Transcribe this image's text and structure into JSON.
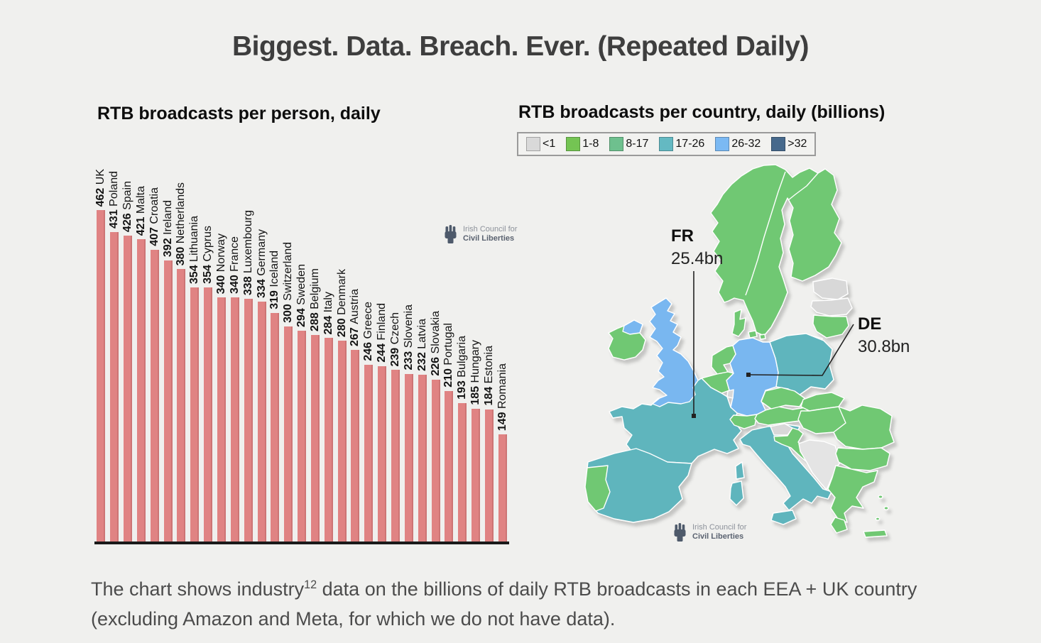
{
  "page": {
    "title": "Biggest. Data. Breach. Ever. (Repeated Daily)",
    "background_color": "#f0f0ee",
    "caption": {
      "text_before_sup": "The chart shows industry",
      "sup": "12",
      "text_after_sup": " data on the billions of daily RTB broadcasts in each EEA + UK country (excluding Amazon and Meta, for which we do not have data)."
    }
  },
  "logo": {
    "line1": "Irish Council for",
    "line2": "Civil Liberties"
  },
  "bar_chart": {
    "title": "RTB broadcasts per person, daily",
    "bar_color": "#e08383"
  },
  "map": {
    "title": "RTB broadcasts per country, daily (billions)",
    "legend": [
      {
        "label": "<1",
        "color": "#d9d9d9"
      },
      {
        "label": "1-8",
        "color": "#74c453"
      },
      {
        "label": "8-17",
        "color": "#6ec08e"
      },
      {
        "label": "17-26",
        "color": "#64b9c2"
      },
      {
        "label": "26-32",
        "color": "#7bb9f3"
      },
      {
        "label": ">32",
        "color": "#47698c"
      }
    ],
    "annotations": [
      {
        "code": "FR",
        "value": "25.4bn"
      },
      {
        "code": "DE",
        "value": "30.8bn"
      }
    ],
    "fill_colors": {
      "gray": "#d8d8d8",
      "green": "#6fc873",
      "teal": "#5fb5bd",
      "blue": "#79b7f0",
      "nonmember": "#e4e4e4"
    },
    "country_fills": {
      "scandinavia": "green",
      "denmark": "green",
      "estonia": "gray",
      "latvia": "gray",
      "lithuania": "green",
      "kaliningrad": "gray",
      "poland": "teal",
      "germany": "blue",
      "netherlands": "green",
      "belgium": "green",
      "luxembourg": "gray",
      "france": "teal",
      "corsica": "teal",
      "spain": "teal",
      "portugal": "green",
      "switzerland": "green",
      "austria": "green",
      "czech": "green",
      "slovakia": "green",
      "hungary": "green",
      "slovenia": "gray",
      "croatia": "green",
      "italy": "teal",
      "sicily": "teal",
      "sardinia": "teal",
      "balkans": "nonmember",
      "romania": "green",
      "bulgaria": "green",
      "greece": "green",
      "peloponnese": "green",
      "crete": "green",
      "uk": "blue",
      "ireland": "green",
      "northern_ireland": "blue",
      "aegean_island": "green"
    }
  },
  "chart_data": [
    {
      "type": "bar",
      "title": "RTB broadcasts per person, daily",
      "categories": [
        "UK",
        "Poland",
        "Spain",
        "Malta",
        "Croatia",
        "Ireland",
        "Netherlands",
        "Lithuania",
        "Cyprus",
        "Norway",
        "France",
        "Luxembourg",
        "Germany",
        "Iceland",
        "Switzerland",
        "Sweden",
        "Belgium",
        "Italy",
        "Denmark",
        "Austria",
        "Greece",
        "Finland",
        "Czech",
        "Slovenia",
        "Latvia",
        "Slovakia",
        "Portugal",
        "Bulgaria",
        "Hungary",
        "Estonia",
        "Romania"
      ],
      "values": [
        462,
        431,
        426,
        421,
        407,
        392,
        380,
        354,
        354,
        340,
        340,
        338,
        334,
        319,
        300,
        294,
        288,
        284,
        280,
        267,
        246,
        244,
        239,
        233,
        232,
        226,
        210,
        193,
        185,
        184,
        149
      ],
      "bar_color": "#e08383",
      "value_labels": "value and country name rotated 90° above each bar",
      "ylim": [
        0,
        462
      ],
      "grid": false,
      "legend_position": "none"
    },
    {
      "type": "choropleth_map",
      "title": "RTB broadcasts per country, daily (billions)",
      "legend_bins": [
        "<1",
        "1-8",
        "8-17",
        "17-26",
        "26-32",
        ">32"
      ],
      "legend_colors": [
        "#d9d9d9",
        "#74c453",
        "#6ec08e",
        "#64b9c2",
        "#7bb9f3",
        "#47698c"
      ],
      "callouts": [
        {
          "country": "FR",
          "value": "25.4bn"
        },
        {
          "country": "DE",
          "value": "30.8bn"
        }
      ],
      "country_classes": {
        "blue_26_32": [
          "UK",
          "Germany"
        ],
        "teal_17_26": [
          "France",
          "Spain",
          "Italy",
          "Poland"
        ],
        "green_1_17": [
          "Ireland",
          "Norway",
          "Sweden",
          "Finland",
          "Denmark",
          "Lithuania",
          "Netherlands",
          "Belgium",
          "Switzerland",
          "Austria",
          "Czech",
          "Slovakia",
          "Hungary",
          "Croatia",
          "Romania",
          "Bulgaria",
          "Greece",
          "Portugal"
        ],
        "gray_lt_1": [
          "Estonia",
          "Latvia",
          "Slovenia",
          "Luxembourg"
        ]
      }
    }
  ]
}
